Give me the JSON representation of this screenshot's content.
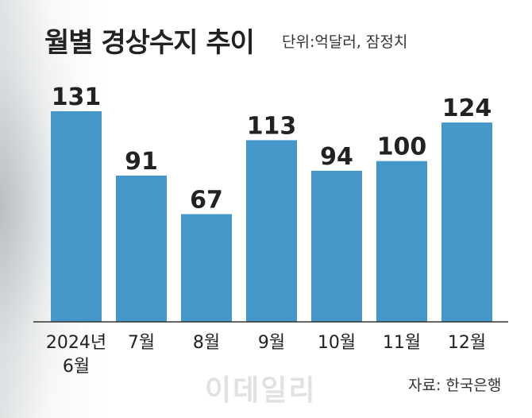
{
  "header": {
    "title": "월별 경상수지 추이",
    "unit": "단위:억달러, 잠정치"
  },
  "footer": {
    "source": "자료: 한국은행",
    "watermark": "이데일리"
  },
  "colors": {
    "bar": "#4697c9",
    "axis": "#333333"
  },
  "chart_data": {
    "type": "bar",
    "title": "월별 경상수지 추이",
    "subtitle": "단위:억달러, 잠정치",
    "categories": [
      [
        "2024년",
        "6월"
      ],
      [
        "7월"
      ],
      [
        "8월"
      ],
      [
        "9월"
      ],
      [
        "10월"
      ],
      [
        "11월"
      ],
      [
        "12월"
      ]
    ],
    "values": [
      131,
      91,
      67,
      113,
      94,
      100,
      124
    ],
    "ylim": [
      0,
      135
    ],
    "grid": false,
    "legend": "none"
  }
}
